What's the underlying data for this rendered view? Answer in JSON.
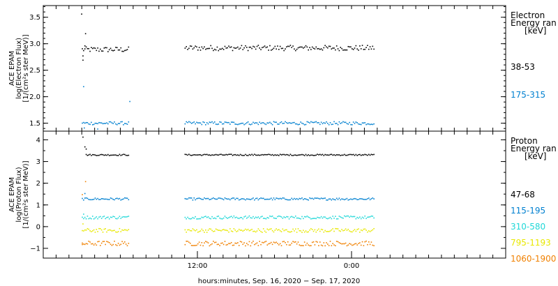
{
  "chart_data": [
    {
      "type": "scatter",
      "panel": "electron",
      "ylabel": [
        "ACE EPAM",
        "log(Electron Flux)",
        "[1/(cm²s ster MeV)]"
      ],
      "ylim": [
        1.35,
        3.72
      ],
      "yticks": [
        1.5,
        2.0,
        2.5,
        3.0,
        3.5
      ],
      "ytick_labels": [
        "1.5",
        "2.0",
        "2.5",
        "3.0",
        "3.5"
      ],
      "legend_title": [
        "Electron",
        "Energy ran",
        "[keV]"
      ],
      "series": [
        {
          "name": "38-53",
          "color": "#000000",
          "segments": [
            {
              "x_start": 3.0,
              "x_end": 6.6,
              "level": 2.9,
              "noise": 0.05,
              "step": 0.1
            },
            {
              "x_start": 11.0,
              "x_end": 25.8,
              "level": 2.93,
              "noise": 0.05,
              "step": 0.1
            }
          ],
          "extra_points": [
            [
              2.95,
              3.57
            ],
            [
              3.25,
              3.2
            ],
            [
              3.05,
              2.78
            ],
            [
              3.05,
              2.7
            ],
            [
              3.2,
              2.97
            ]
          ]
        },
        {
          "name": "175-315",
          "color": "#0080d0",
          "segments": [
            {
              "x_start": 3.0,
              "x_end": 6.6,
              "level": 1.51,
              "noise": 0.03,
              "step": 0.1
            },
            {
              "x_start": 11.0,
              "x_end": 25.8,
              "level": 1.51,
              "noise": 0.03,
              "step": 0.1
            }
          ],
          "extra_points": [
            [
              3.1,
              2.2
            ],
            [
              6.7,
              1.92
            ],
            [
              3.15,
              1.42
            ],
            [
              4.2,
              1.4
            ]
          ]
        }
      ]
    },
    {
      "type": "scatter",
      "panel": "proton",
      "ylabel": [
        "ACE EPAM",
        "log(Proton Flux)",
        "[1/(cm²s ster MeV)]"
      ],
      "ylim": [
        -1.45,
        4.4
      ],
      "yticks": [
        -1,
        0,
        1,
        2,
        3,
        4
      ],
      "ytick_labels": [
        "−1",
        "0",
        "1",
        "2",
        "3",
        "4"
      ],
      "legend_title": [
        "Proton",
        "Energy ran",
        "[keV]"
      ],
      "series": [
        {
          "name": "47-68",
          "color": "#000000",
          "segments": [
            {
              "x_start": 3.3,
              "x_end": 6.6,
              "level": 3.33,
              "noise": 0.03,
              "step": 0.1
            },
            {
              "x_start": 11.0,
              "x_end": 25.8,
              "level": 3.33,
              "noise": 0.03,
              "step": 0.1
            }
          ],
          "extra_points": [
            [
              3.05,
              4.15
            ],
            [
              3.2,
              3.7
            ],
            [
              3.3,
              3.6
            ]
          ]
        },
        {
          "name": "115-195",
          "color": "#0080d0",
          "segments": [
            {
              "x_start": 3.0,
              "x_end": 6.6,
              "level": 1.3,
              "noise": 0.05,
              "step": 0.1
            },
            {
              "x_start": 11.0,
              "x_end": 25.8,
              "level": 1.3,
              "noise": 0.05,
              "step": 0.1
            }
          ],
          "extra_points": [
            [
              3.2,
              1.55
            ]
          ]
        },
        {
          "name": "310-580",
          "color": "#20d8d8",
          "segments": [
            {
              "x_start": 3.0,
              "x_end": 6.6,
              "level": 0.45,
              "noise": 0.07,
              "step": 0.1
            },
            {
              "x_start": 11.0,
              "x_end": 25.8,
              "level": 0.45,
              "noise": 0.07,
              "step": 0.1
            }
          ],
          "extra_points": [
            [
              3.1,
              0.6
            ]
          ]
        },
        {
          "name": "795-1193",
          "color": "#e8e800",
          "segments": [
            {
              "x_start": 3.0,
              "x_end": 6.6,
              "level": -0.15,
              "noise": 0.09,
              "step": 0.1
            },
            {
              "x_start": 11.0,
              "x_end": 25.8,
              "level": -0.15,
              "noise": 0.09,
              "step": 0.1
            }
          ],
          "extra_points": [
            [
              3.05,
              0.15
            ]
          ]
        },
        {
          "name": "1060-1900",
          "color": "#f08000",
          "segments": [
            {
              "x_start": 3.0,
              "x_end": 6.6,
              "level": -0.75,
              "noise": 0.11,
              "step": 0.1
            },
            {
              "x_start": 11.0,
              "x_end": 25.8,
              "level": -0.75,
              "noise": 0.11,
              "step": 0.1
            }
          ],
          "extra_points": [
            [
              3.25,
              2.1
            ],
            [
              3.0,
              1.5
            ],
            [
              3.0,
              -0.8
            ]
          ]
        }
      ]
    }
  ],
  "x_axis": {
    "range_hours": [
      0,
      36
    ],
    "major_ticks_hours": [
      12,
      24
    ],
    "major_tick_labels": [
      "12:00",
      "0:00"
    ],
    "minor_step_hours": 1,
    "xlabel": "hours:minutes, Sep. 16, 2020 − Sep. 17, 2020"
  }
}
